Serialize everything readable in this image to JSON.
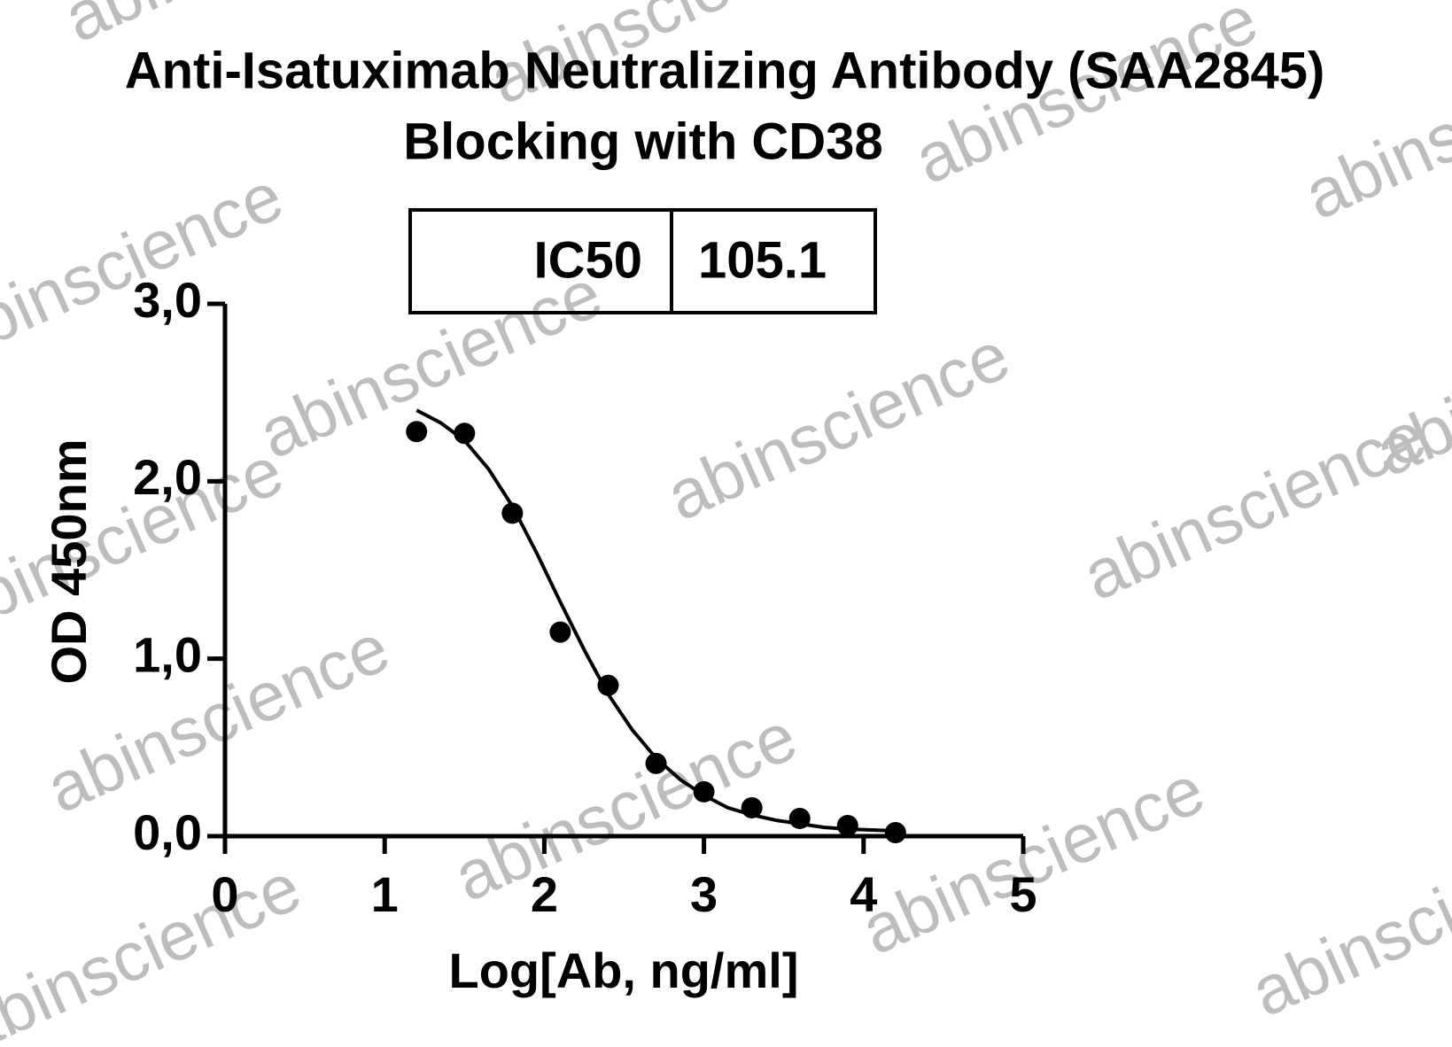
{
  "chart_data": {
    "type": "scatter",
    "title": "Anti-Isatuximab Neutralizing Antibody (SAA2845)",
    "subtitle": "Blocking with CD38",
    "x_label": "Log[Ab, ng/ml]",
    "y_label": "OD 450nm",
    "x": [
      1.2,
      1.5,
      1.8,
      2.1,
      2.4,
      2.7,
      3.0,
      3.3,
      3.6,
      3.9,
      4.2
    ],
    "series": [
      {
        "color": "#000000",
        "values": [
          2.28,
          2.27,
          1.82,
          1.15,
          0.85,
          0.41,
          0.25,
          0.16,
          0.1,
          0.06,
          0.02
        ]
      }
    ],
    "fit": {
      "color": "#000000",
      "x": [
        1.2,
        1.35,
        1.5,
        1.65,
        1.8,
        1.95,
        2.1,
        2.25,
        2.4,
        2.55,
        2.7,
        2.85,
        3.0,
        3.15,
        3.3,
        3.45,
        3.6,
        3.75,
        3.9,
        4.05,
        4.2
      ],
      "values": [
        2.4,
        2.33,
        2.23,
        2.07,
        1.86,
        1.6,
        1.32,
        1.05,
        0.8,
        0.6,
        0.44,
        0.32,
        0.23,
        0.16,
        0.12,
        0.09,
        0.07,
        0.05,
        0.04,
        0.035,
        0.03
      ]
    },
    "stats_table": [
      [
        "IC50",
        "105.1"
      ]
    ],
    "watermark": "abinscience",
    "xlim": [
      0,
      5
    ],
    "xticks": [
      0,
      1,
      2,
      3,
      4,
      5
    ],
    "ylim": [
      0,
      3
    ],
    "yticks": [
      {
        "value": 0,
        "label": "0,0"
      },
      {
        "value": 1,
        "label": "1,0"
      },
      {
        "value": 2,
        "label": "2,0"
      },
      {
        "value": 3,
        "label": "3,0"
      }
    ],
    "grid": false
  }
}
